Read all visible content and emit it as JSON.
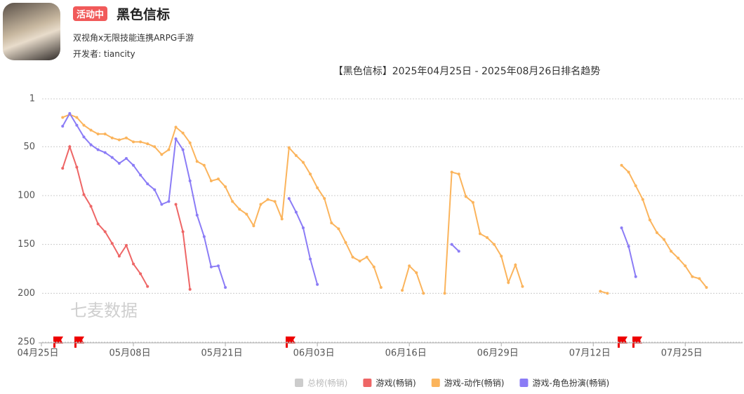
{
  "header": {
    "badge": "活动中",
    "title": "黑色信标",
    "subtitle": "双视角x无限技能连携ARPG手游",
    "developer": "开发者: tiancity"
  },
  "chart_data": {
    "type": "line",
    "title": "【黑色信标】2025年04月25日 - 2025年08月26日排名趋势",
    "watermark": "七麦数据",
    "ylim": [
      1,
      250
    ],
    "y_reversed": true,
    "yticks": [
      1,
      50,
      100,
      150,
      200,
      250
    ],
    "grid": true,
    "legend": "bottom",
    "categories": [
      "04月25日",
      null,
      null,
      null,
      null,
      null,
      null,
      null,
      null,
      null,
      null,
      null,
      null,
      "05月08日",
      null,
      null,
      null,
      null,
      null,
      null,
      null,
      null,
      null,
      null,
      null,
      null,
      "05月21日",
      null,
      null,
      null,
      null,
      null,
      null,
      null,
      null,
      null,
      null,
      null,
      null,
      "06月03日",
      null,
      null,
      null,
      null,
      null,
      null,
      null,
      null,
      null,
      null,
      null,
      null,
      "06月16日",
      null,
      null,
      null,
      null,
      null,
      null,
      null,
      null,
      null,
      null,
      null,
      null,
      "06月29日",
      null,
      null,
      null,
      null,
      null,
      null,
      null,
      null,
      null,
      null,
      null,
      null,
      "07月12日",
      null,
      null,
      null,
      null,
      null,
      null,
      null,
      null,
      null,
      null,
      null,
      null,
      "07月25日",
      null,
      null,
      null,
      null,
      null,
      null,
      null
    ],
    "series": [
      {
        "name": "总榜(畅销)",
        "color": "#cccccc",
        "hidden": true
      },
      {
        "name": "游戏(畅销)",
        "color": "#ee6666",
        "values": [
          null,
          null,
          null,
          72,
          50,
          71,
          99,
          111,
          129,
          137,
          149,
          162,
          151,
          170,
          180,
          193,
          null,
          null,
          null,
          109,
          137,
          196,
          null,
          null,
          null,
          null,
          null,
          null,
          null,
          null,
          null,
          null,
          null,
          null,
          null,
          null,
          null,
          null,
          null,
          null,
          null,
          null,
          null,
          null,
          null,
          null,
          null,
          null,
          null,
          null,
          null,
          null,
          null,
          null,
          null,
          null,
          null,
          null,
          null,
          null,
          null,
          null,
          null,
          null,
          null,
          null,
          null,
          null,
          null,
          null,
          null,
          null,
          null,
          null,
          null,
          null,
          null,
          null,
          null,
          null,
          null,
          null,
          null,
          null,
          null,
          null,
          null,
          null,
          null,
          null,
          null,
          null,
          null,
          null,
          null,
          null,
          null,
          null,
          null
        ]
      },
      {
        "name": "游戏-动作(畅销)",
        "color": "#fbb45c",
        "values": [
          null,
          null,
          null,
          20,
          17,
          20,
          28,
          33,
          37,
          37,
          41,
          43,
          41,
          45,
          45,
          47,
          50,
          58,
          53,
          30,
          36,
          46,
          65,
          69,
          85,
          83,
          91,
          106,
          114,
          119,
          131,
          109,
          104,
          106,
          124,
          51,
          59,
          66,
          78,
          92,
          103,
          128,
          134,
          148,
          163,
          167,
          163,
          173,
          194,
          null,
          null,
          197,
          172,
          179,
          200,
          null,
          null,
          200,
          76,
          78,
          101,
          107,
          139,
          143,
          150,
          162,
          189,
          171,
          193,
          null,
          null,
          null,
          null,
          null,
          null,
          null,
          null,
          null,
          null,
          198,
          200,
          null,
          69,
          76,
          90,
          104,
          125,
          138,
          145,
          157,
          164,
          172,
          183,
          185,
          194,
          null,
          null,
          null,
          null
        ]
      },
      {
        "name": "游戏-角色扮演(畅销)",
        "color": "#8b7cf6",
        "values": [
          null,
          null,
          null,
          29,
          16,
          28,
          40,
          48,
          53,
          56,
          61,
          67,
          62,
          69,
          79,
          88,
          94,
          109,
          106,
          42,
          53,
          85,
          120,
          142,
          173,
          172,
          194,
          null,
          null,
          null,
          null,
          null,
          null,
          null,
          null,
          103,
          117,
          133,
          165,
          191,
          null,
          null,
          null,
          null,
          null,
          null,
          null,
          null,
          null,
          null,
          null,
          null,
          null,
          null,
          null,
          null,
          null,
          null,
          150,
          157,
          null,
          null,
          null,
          null,
          null,
          null,
          null,
          null,
          null,
          null,
          null,
          null,
          null,
          null,
          null,
          null,
          null,
          null,
          null,
          null,
          null,
          null,
          133,
          152,
          183,
          null,
          null,
          null,
          null,
          null,
          null,
          null,
          null,
          null,
          null,
          null,
          null,
          null,
          null
        ]
      }
    ]
  }
}
